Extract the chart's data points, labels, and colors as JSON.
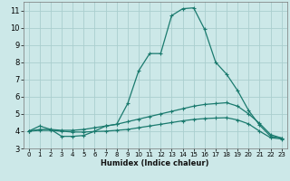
{
  "xlabel": "Humidex (Indice chaleur)",
  "background_color": "#cce8e8",
  "grid_color": "#aacece",
  "line_color": "#1a7a6e",
  "xlim": [
    -0.5,
    23.5
  ],
  "ylim": [
    3,
    11.5
  ],
  "xticks": [
    0,
    1,
    2,
    3,
    4,
    5,
    6,
    7,
    8,
    9,
    10,
    11,
    12,
    13,
    14,
    15,
    16,
    17,
    18,
    19,
    20,
    21,
    22,
    23
  ],
  "yticks": [
    3,
    4,
    5,
    6,
    7,
    8,
    9,
    10,
    11
  ],
  "series": [
    {
      "x": [
        0,
        1,
        2,
        3,
        4,
        5,
        6,
        7,
        8,
        9,
        10,
        11,
        12,
        13,
        14,
        15,
        16,
        17,
        18,
        19,
        20,
        21,
        22,
        23
      ],
      "y": [
        4.0,
        4.3,
        4.1,
        3.7,
        3.7,
        3.75,
        4.0,
        4.3,
        4.4,
        5.6,
        7.5,
        8.5,
        8.5,
        10.7,
        11.1,
        11.15,
        9.9,
        8.0,
        7.3,
        6.35,
        5.2,
        4.35,
        3.7,
        3.6
      ]
    },
    {
      "x": [
        0,
        1,
        2,
        3,
        4,
        5,
        6,
        7,
        8,
        9,
        10,
        11,
        12,
        13,
        14,
        15,
        16,
        17,
        18,
        19,
        20,
        21,
        22,
        23
      ],
      "y": [
        4.0,
        4.1,
        4.1,
        4.05,
        4.05,
        4.1,
        4.2,
        4.3,
        4.4,
        4.55,
        4.7,
        4.85,
        5.0,
        5.15,
        5.3,
        5.45,
        5.55,
        5.6,
        5.65,
        5.45,
        5.0,
        4.45,
        3.8,
        3.6
      ]
    },
    {
      "x": [
        0,
        1,
        2,
        3,
        4,
        5,
        6,
        7,
        8,
        9,
        10,
        11,
        12,
        13,
        14,
        15,
        16,
        17,
        18,
        19,
        20,
        21,
        22,
        23
      ],
      "y": [
        4.0,
        4.05,
        4.05,
        4.0,
        3.95,
        3.95,
        3.98,
        4.0,
        4.05,
        4.1,
        4.2,
        4.3,
        4.4,
        4.5,
        4.6,
        4.68,
        4.73,
        4.76,
        4.78,
        4.65,
        4.42,
        4.0,
        3.62,
        3.55
      ]
    }
  ]
}
